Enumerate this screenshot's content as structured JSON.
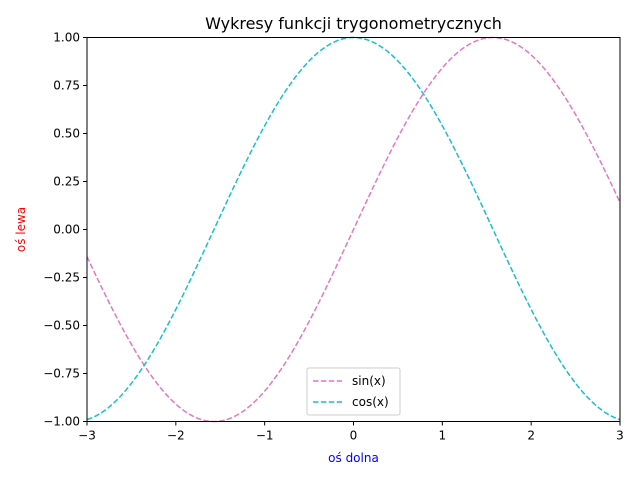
{
  "chart_data": {
    "type": "line",
    "title": "Wykresy funkcji trygonometrycznych",
    "xlabel": "oś dolna",
    "ylabel": "oś lewa",
    "xlim": [
      -3,
      3
    ],
    "ylim": [
      -1,
      1
    ],
    "xticks": [
      -3,
      -2,
      -1,
      0,
      1,
      2,
      3
    ],
    "xtick_labels": [
      "−3",
      "−2",
      "−1",
      "0",
      "1",
      "2",
      "3"
    ],
    "yticks": [
      -1.0,
      -0.75,
      -0.5,
      -0.25,
      0.0,
      0.25,
      0.5,
      0.75,
      1.0
    ],
    "ytick_labels": [
      "−1.00",
      "−0.75",
      "−0.50",
      "−0.25",
      "0.00",
      "0.25",
      "0.50",
      "0.75",
      "1.00"
    ],
    "grid": false,
    "legend_position": "bottom-center",
    "x": [
      -3.0,
      -2.75,
      -2.5,
      -2.25,
      -2.0,
      -1.75,
      -1.5,
      -1.25,
      -1.0,
      -0.75,
      -0.5,
      -0.25,
      0.0,
      0.25,
      0.5,
      0.75,
      1.0,
      1.25,
      1.5,
      1.75,
      2.0,
      2.25,
      2.5,
      2.75,
      3.0
    ],
    "series": [
      {
        "name": "sin(x)",
        "color": "#e377c2",
        "line_style": "dashed",
        "values": [
          -0.141,
          -0.382,
          -0.598,
          -0.778,
          -0.909,
          -0.984,
          -0.997,
          -0.949,
          -0.841,
          -0.682,
          -0.479,
          -0.247,
          0.0,
          0.247,
          0.479,
          0.682,
          0.841,
          0.949,
          0.997,
          0.984,
          0.909,
          0.778,
          0.598,
          0.382,
          0.141
        ]
      },
      {
        "name": "cos(x)",
        "color": "#17becf",
        "line_style": "dashed",
        "values": [
          -0.99,
          -0.924,
          -0.801,
          -0.628,
          -0.416,
          -0.178,
          0.071,
          0.315,
          0.54,
          0.732,
          0.878,
          0.969,
          1.0,
          0.969,
          0.878,
          0.732,
          0.54,
          0.315,
          0.071,
          -0.178,
          -0.416,
          -0.628,
          -0.801,
          -0.924,
          -0.99
        ]
      }
    ],
    "colors": {
      "xlabel": "#0000ff",
      "ylabel": "#ff0000",
      "axes": "#000000"
    }
  }
}
